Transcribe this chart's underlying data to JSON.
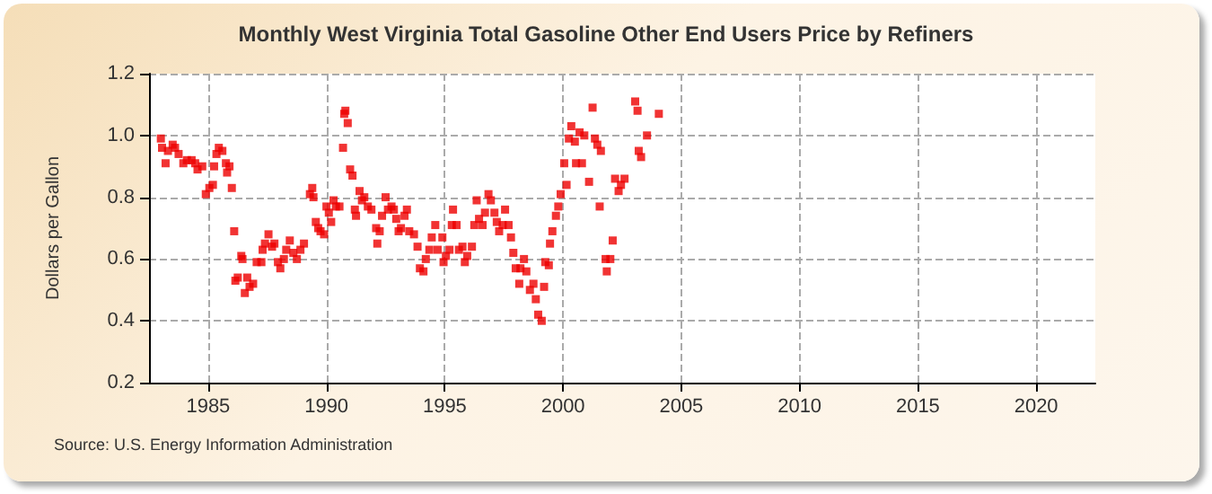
{
  "chart_data": {
    "type": "scatter",
    "title": "Monthly West Virginia Total Gasoline Other End Users Price by Refiners",
    "ylabel": "Dollars per Gallon",
    "annotations": [
      "Source: U.S. Energy Information Administration"
    ],
    "marker": "square",
    "grid": true,
    "color": "#ee0000",
    "xlim": [
      1982.5,
      2022.5
    ],
    "xticks": [
      1985,
      1990,
      1995,
      2000,
      2005,
      2010,
      2015,
      2020
    ],
    "ylim": [
      0.2,
      1.2
    ],
    "yticks": [
      0.2,
      0.4,
      0.6,
      0.8,
      {
        "value": 1,
        "label": "1.0"
      },
      1.2
    ],
    "x": [
      1983.0,
      1983.05,
      1983.2,
      1983.3,
      1983.5,
      1983.6,
      1983.75,
      1983.95,
      1984.1,
      1984.3,
      1984.45,
      1984.55,
      1984.75,
      1984.9,
      1985.05,
      1985.2,
      1985.25,
      1985.35,
      1985.45,
      1985.6,
      1985.75,
      1985.8,
      1985.9,
      1986.0,
      1986.1,
      1986.15,
      1986.25,
      1986.4,
      1986.45,
      1986.55,
      1986.65,
      1986.75,
      1986.9,
      1987.05,
      1987.25,
      1987.3,
      1987.4,
      1987.55,
      1987.7,
      1987.8,
      1987.95,
      1988.05,
      1988.2,
      1988.3,
      1988.45,
      1988.6,
      1988.75,
      1988.9,
      1989.05,
      1989.3,
      1989.4,
      1989.45,
      1989.55,
      1989.65,
      1989.75,
      1989.9,
      1990.0,
      1990.1,
      1990.2,
      1990.3,
      1990.4,
      1990.55,
      1990.7,
      1990.75,
      1990.8,
      1990.9,
      1991.0,
      1991.1,
      1991.2,
      1991.25,
      1991.4,
      1991.5,
      1991.6,
      1991.75,
      1991.9,
      1992.1,
      1992.15,
      1992.25,
      1992.35,
      1992.5,
      1992.6,
      1992.75,
      1992.85,
      1992.95,
      1993.05,
      1993.15,
      1993.3,
      1993.4,
      1993.5,
      1993.7,
      1993.85,
      1993.95,
      1994.1,
      1994.2,
      1994.35,
      1994.45,
      1994.6,
      1994.7,
      1994.9,
      1994.95,
      1995.05,
      1995.2,
      1995.3,
      1995.35,
      1995.5,
      1995.6,
      1995.75,
      1995.85,
      1995.95,
      1996.15,
      1996.25,
      1996.35,
      1996.45,
      1996.6,
      1996.7,
      1996.85,
      1996.95,
      1997.1,
      1997.2,
      1997.3,
      1997.45,
      1997.55,
      1997.7,
      1997.8,
      1997.9,
      1998.0,
      1998.15,
      1998.2,
      1998.35,
      1998.45,
      1998.6,
      1998.75,
      1998.85,
      1998.95,
      1999.1,
      1999.2,
      1999.25,
      1999.4,
      1999.45,
      1999.55,
      1999.7,
      1999.8,
      1999.9,
      2000.05,
      2000.15,
      2000.25,
      2000.35,
      2000.5,
      2000.55,
      2000.7,
      2000.8,
      2000.9,
      2001.1,
      2001.25,
      2001.35,
      2001.45,
      2001.55,
      2001.6,
      2001.8,
      2001.85,
      2002.0,
      2002.1,
      2002.2,
      2002.35,
      2002.45,
      2002.6,
      2003.05,
      2003.15,
      2003.2,
      2003.3,
      2003.55,
      2004.05
    ],
    "values": [
      0.99,
      0.96,
      0.91,
      0.95,
      0.97,
      0.96,
      0.94,
      0.91,
      0.92,
      0.92,
      0.91,
      0.89,
      0.9,
      0.81,
      0.83,
      0.84,
      0.9,
      0.94,
      0.96,
      0.95,
      0.91,
      0.88,
      0.9,
      0.83,
      0.69,
      0.53,
      0.54,
      0.61,
      0.6,
      0.49,
      0.54,
      0.51,
      0.52,
      0.59,
      0.59,
      0.63,
      0.65,
      0.68,
      0.64,
      0.65,
      0.59,
      0.57,
      0.6,
      0.63,
      0.66,
      0.62,
      0.6,
      0.63,
      0.65,
      0.81,
      0.83,
      0.8,
      0.72,
      0.7,
      0.69,
      0.68,
      0.77,
      0.75,
      0.72,
      0.79,
      0.77,
      0.77,
      0.96,
      1.07,
      1.08,
      1.04,
      0.89,
      0.87,
      0.76,
      0.74,
      0.82,
      0.79,
      0.8,
      0.77,
      0.76,
      0.7,
      0.65,
      0.69,
      0.74,
      0.8,
      0.76,
      0.77,
      0.76,
      0.73,
      0.69,
      0.7,
      0.74,
      0.76,
      0.69,
      0.68,
      0.64,
      0.57,
      0.56,
      0.6,
      0.63,
      0.67,
      0.71,
      0.63,
      0.67,
      0.59,
      0.61,
      0.63,
      0.71,
      0.76,
      0.71,
      0.63,
      0.64,
      0.59,
      0.61,
      0.64,
      0.71,
      0.79,
      0.73,
      0.71,
      0.75,
      0.81,
      0.79,
      0.75,
      0.72,
      0.69,
      0.71,
      0.76,
      0.71,
      0.67,
      0.62,
      0.57,
      0.52,
      0.57,
      0.6,
      0.56,
      0.5,
      0.52,
      0.47,
      0.42,
      0.4,
      0.51,
      0.59,
      0.58,
      0.65,
      0.69,
      0.74,
      0.77,
      0.81,
      0.91,
      0.84,
      0.99,
      1.03,
      0.98,
      0.91,
      1.01,
      0.91,
      1.0,
      0.85,
      1.09,
      0.99,
      0.97,
      0.77,
      0.95,
      0.6,
      0.56,
      0.6,
      0.66,
      0.86,
      0.82,
      0.84,
      0.86,
      1.11,
      1.08,
      0.95,
      0.93,
      1.0,
      1.07
    ]
  }
}
